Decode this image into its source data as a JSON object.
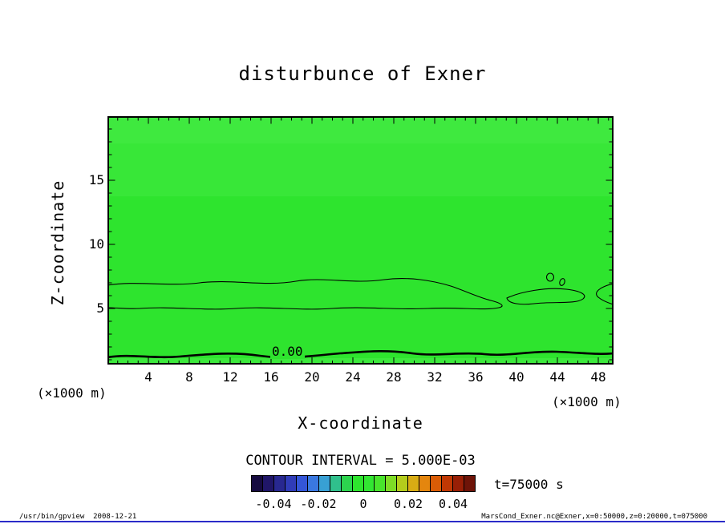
{
  "title": "disturbunce of Exner",
  "axes": {
    "x_label": "X-coordinate",
    "y_label": "Z-coordinate",
    "unit_left": "(×1000 m)",
    "unit_right": "(×1000 m)"
  },
  "contour": {
    "zero_label": "0.00",
    "interval_text": "CONTOUR INTERVAL = 5.000E-03"
  },
  "annotations": {
    "time": "t=75000 s"
  },
  "footer": {
    "left": "/usr/bin/gpview  2008-12-21",
    "right": "MarsCond_Exner.nc@Exner,x=0:50000,z=0:20000,t=075000"
  },
  "plot": {
    "fill_base": "#2ee42e",
    "fill_upper": "#38e738",
    "fill_top": "#3fe93f",
    "fill_bottom": "#3de93d",
    "frame_color": "#000000"
  },
  "colorbar": {
    "tick_labels": [
      "-0.04",
      "-0.02",
      "0",
      "0.02",
      "0.04"
    ],
    "tick_values": [
      -0.04,
      -0.02,
      0,
      0.02,
      0.04
    ],
    "range": [
      -0.05,
      0.05
    ],
    "colors": [
      "#160b40",
      "#201668",
      "#282890",
      "#303cb8",
      "#3456d8",
      "#3a78e0",
      "#38a0d4",
      "#30c08c",
      "#2cd44e",
      "#2ee42e",
      "#32e632",
      "#48e42c",
      "#7edc26",
      "#b4cc1c",
      "#d8ac14",
      "#e4860e",
      "#da5c06",
      "#c03804",
      "#981f06",
      "#6e1408"
    ]
  },
  "chart_data": {
    "type": "heatmap",
    "title": "disturbunce of Exner",
    "xlabel": "X-coordinate (×1000 m)",
    "ylabel": "Z-coordinate (×1000 m)",
    "xlim": [
      0,
      50
    ],
    "ylim": [
      0,
      20
    ],
    "x_ticks": [
      4,
      8,
      12,
      16,
      20,
      24,
      28,
      32,
      36,
      40,
      44,
      48
    ],
    "y_ticks": [
      5,
      10,
      15
    ],
    "contour_interval": 0.005,
    "colorbar_ticks": [
      -0.04,
      -0.02,
      0,
      0.02,
      0.04
    ],
    "colorbar_range": [
      -0.05,
      0.05
    ],
    "time_label": "t=75000 s",
    "legend_position": "bottom",
    "grid": false,
    "field_summary": "Exner-function disturbance is near zero (uniform green shading) over the whole domain x=0..50 km, z=0..20 km; a thick 0.00 contour runs along z≈1.5 for all x, and weak thin contours (≈±0.005) form elongated bands between z≈5 and z≈7 with small closed cells near x≈44.",
    "contours": [
      {
        "value": 0.0,
        "label": "0.00",
        "style": "thick",
        "location": "z ≈ 1.5 across full x range"
      },
      {
        "value": -0.005,
        "style": "thin",
        "location": "elongated bands z ≈ 5–7, x ≈ 0–44 and near right edge"
      }
    ]
  }
}
